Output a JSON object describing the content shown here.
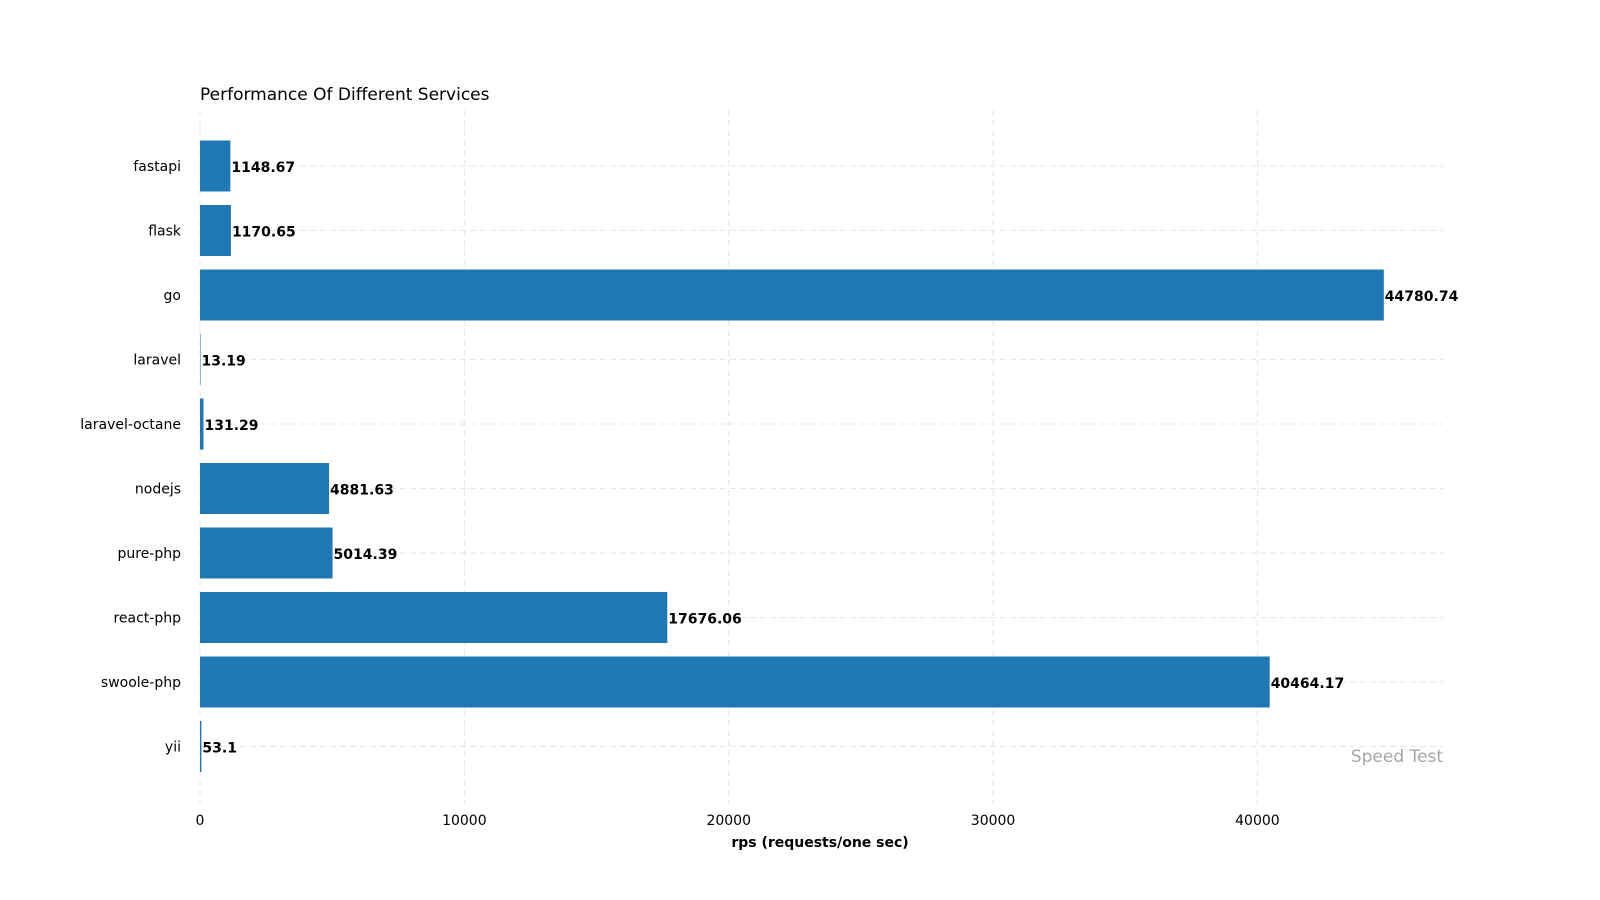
{
  "chart_data": {
    "type": "bar",
    "orientation": "horizontal",
    "title": "Performance Of Different Services",
    "xlabel": "rps (requests/one sec)",
    "ylabel": "",
    "categories": [
      "fastapi",
      "flask",
      "go",
      "laravel",
      "laravel-octane",
      "nodejs",
      "pure-php",
      "react-php",
      "swoole-php",
      "yii"
    ],
    "values": [
      1148.67,
      1170.65,
      44780.74,
      13.19,
      131.29,
      4881.63,
      5014.39,
      17676.06,
      40464.17,
      53.1
    ],
    "value_labels": [
      "1148.67",
      "1170.65",
      "44780.74",
      "13.19",
      "131.29",
      "4881.63",
      "5014.39",
      "17676.06",
      "40464.17",
      "53.1"
    ],
    "xlim": [
      0,
      47020
    ],
    "xticks": [
      0,
      10000,
      20000,
      30000,
      40000
    ],
    "xtick_labels": [
      "0",
      "10000",
      "20000",
      "30000",
      "40000"
    ],
    "grid": true,
    "annotation": "Speed Test",
    "bar_color": "#1f77b4",
    "grid_color": "#e6e6e6",
    "annotation_color": "#a6a6a6"
  }
}
